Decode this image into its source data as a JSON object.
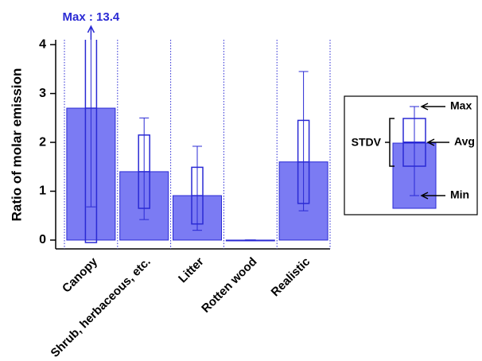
{
  "chart_data": {
    "type": "bar",
    "y_label": "Ratio of molar emission",
    "categories": [
      "Canopy",
      "Shrub, herbaceous, etc.",
      "Litter",
      "Rotten wood",
      "Realistic"
    ],
    "series": [
      {
        "name": "Avg",
        "color": "#7b7bf3",
        "values": [
          2.7,
          1.4,
          0.91,
          0.0,
          1.6
        ]
      },
      {
        "name": "STDV",
        "color": "#2a2ad4",
        "values": [
          2.75,
          0.75,
          0.58,
          0.0,
          0.85
        ]
      },
      {
        "name": "Min",
        "color": "#2a2ad4",
        "values": [
          0.68,
          0.42,
          0.2,
          0.0,
          0.6
        ]
      },
      {
        "name": "Max",
        "color": "#2a2ad4",
        "values": [
          13.4,
          2.5,
          1.92,
          0.0,
          3.45
        ],
        "value_labels": [
          "Max : 13.4",
          null,
          null,
          null,
          null
        ]
      }
    ],
    "ylim": [
      -0.18,
      4.1
    ],
    "yticks": [
      0,
      1,
      2,
      3,
      4
    ]
  }
}
